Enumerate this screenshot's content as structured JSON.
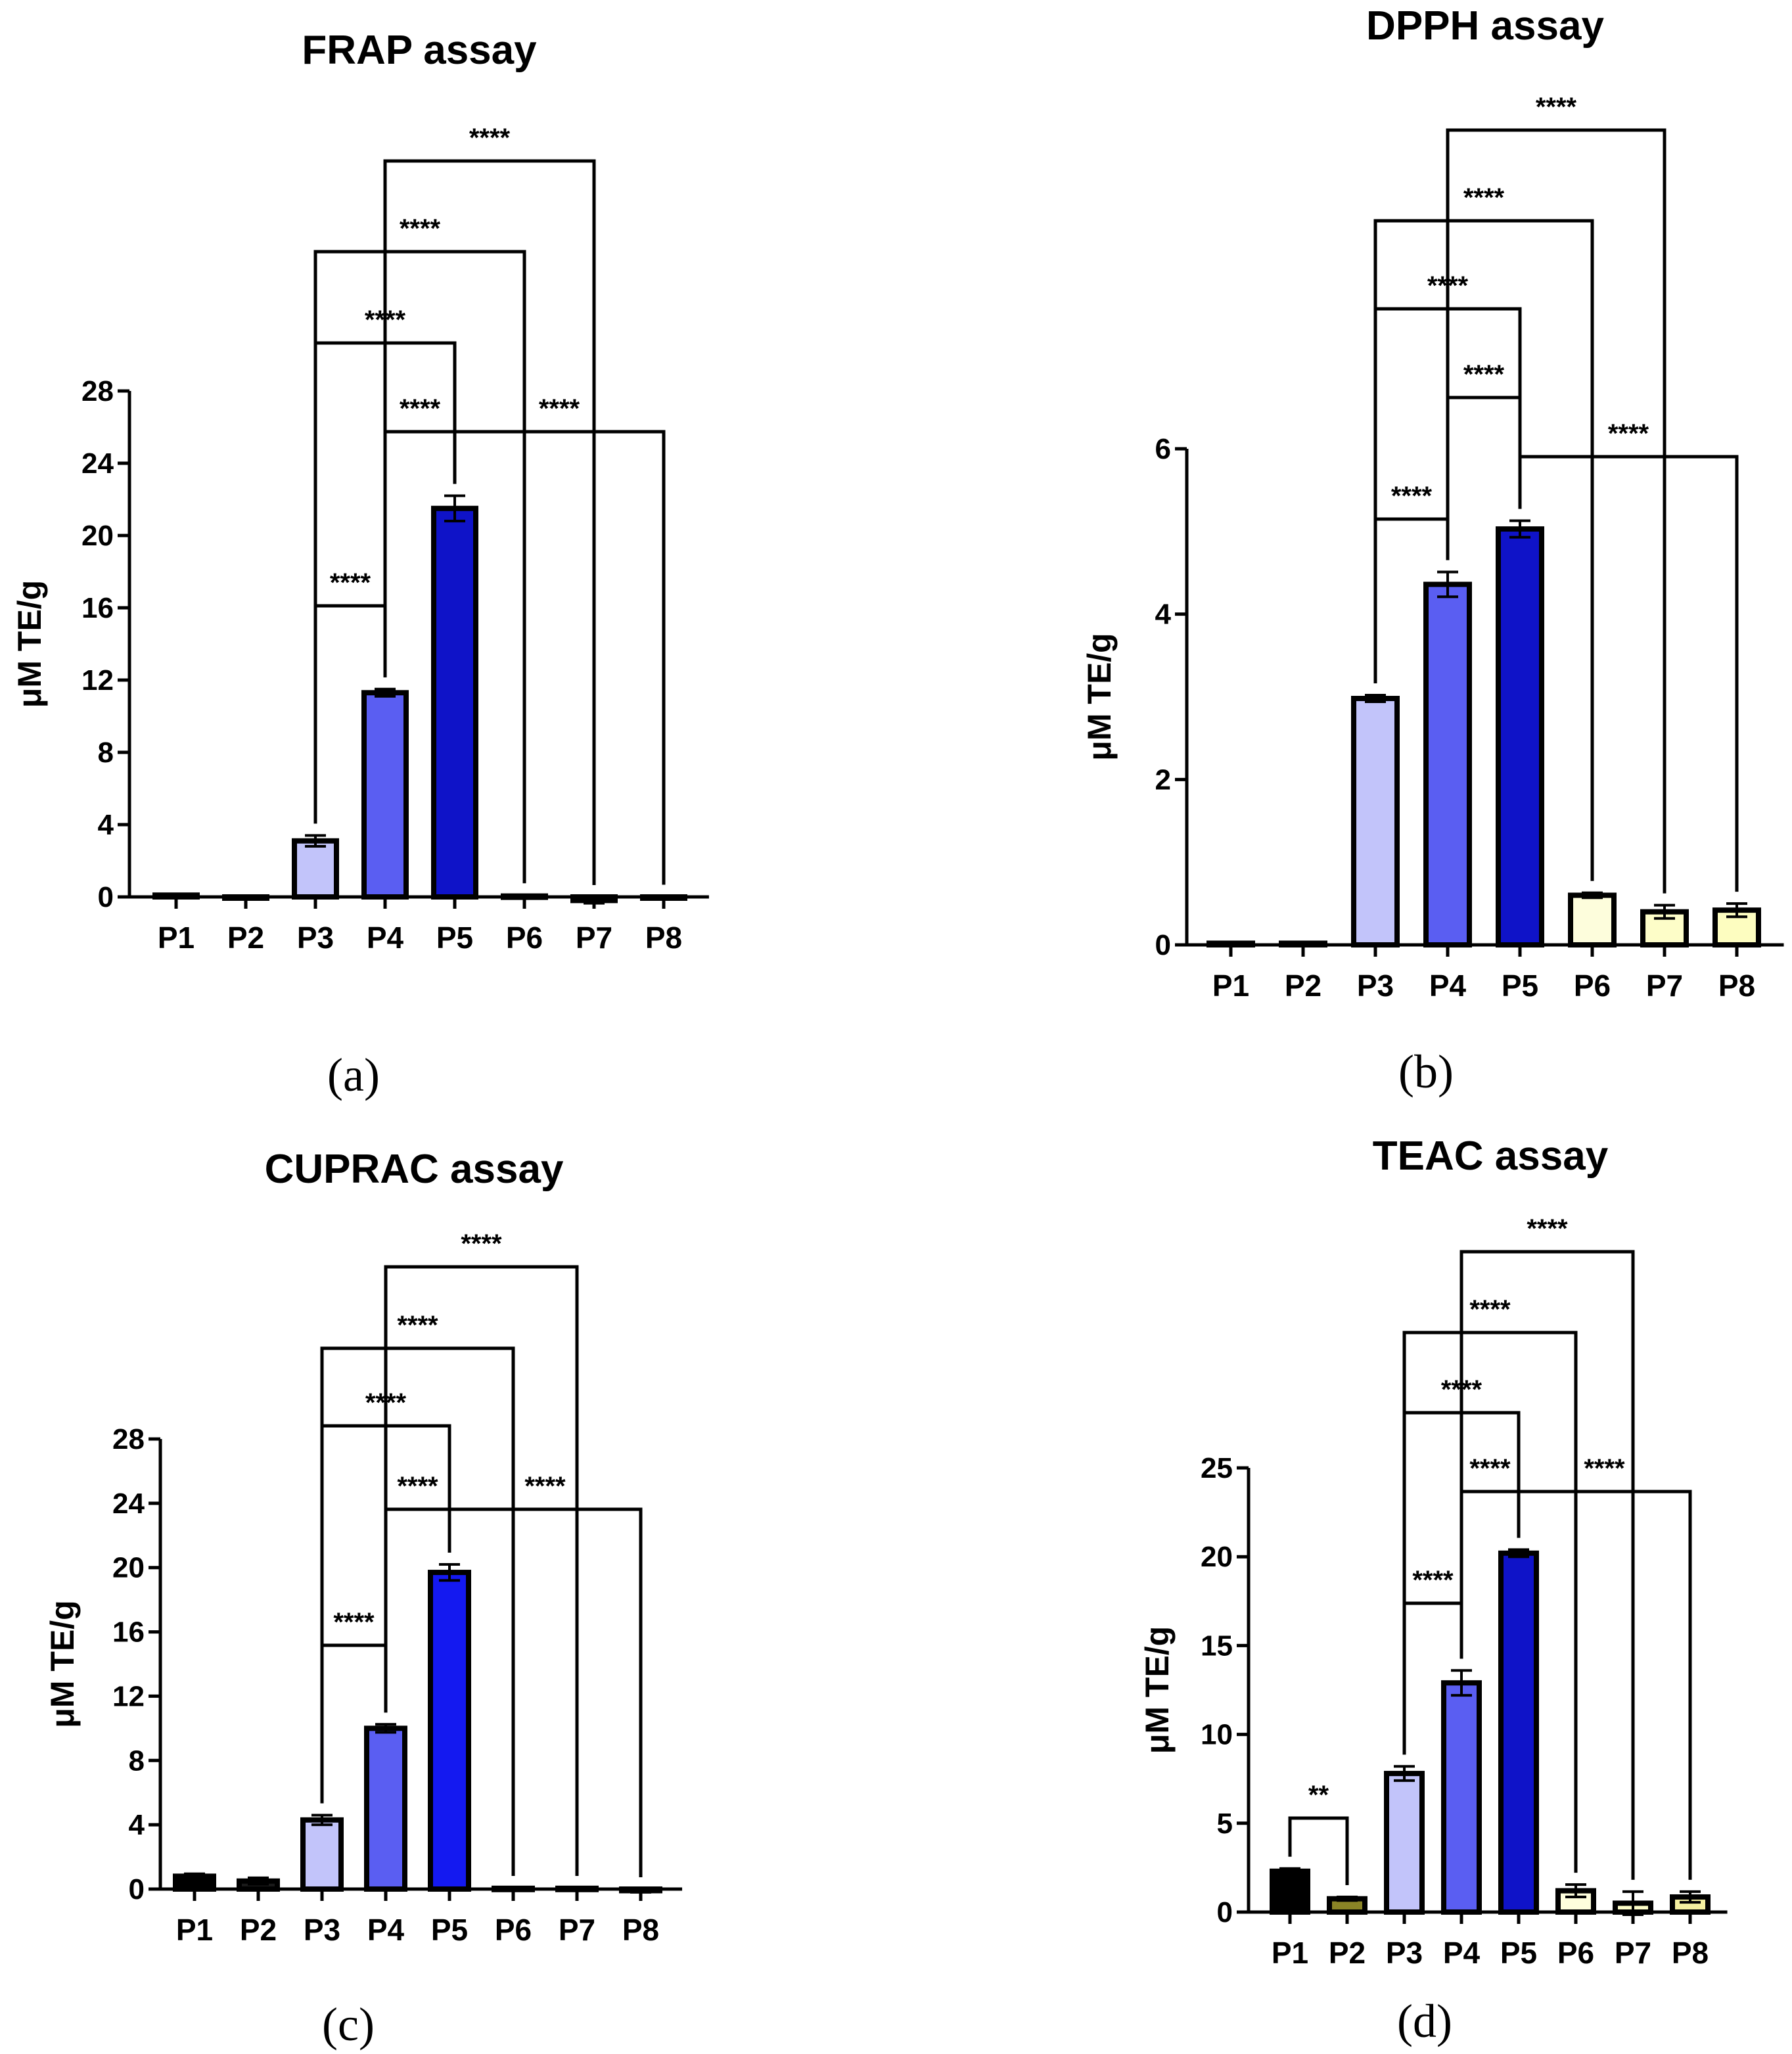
{
  "chart_data": [
    {
      "type": "bar",
      "panel_label": "(a)",
      "title": "FRAP assay",
      "ylabel": "μM TE/g",
      "xlabel": "",
      "categories": [
        "P1",
        "P2",
        "P3",
        "P4",
        "P5",
        "P6",
        "P7",
        "P8"
      ],
      "values": [
        0.1,
        0.0,
        3.1,
        11.3,
        21.5,
        0.05,
        -0.2,
        0.0
      ],
      "errors": [
        0.05,
        0.03,
        0.3,
        0.2,
        0.7,
        0.05,
        0.15,
        0.02
      ],
      "colors": [
        "#000000",
        "#1a1a1a",
        "#c2c4fa",
        "#5a5ef2",
        "#0f13c8",
        "#fdfddc",
        "#fdfdc8",
        "#fdfdc0"
      ],
      "ylim": [
        0,
        28
      ],
      "yticks": [
        "0",
        "4",
        "8",
        "12",
        "16",
        "20",
        "24",
        "28"
      ],
      "significance": [
        {
          "from": "P3",
          "to": "P4",
          "label": "****"
        },
        {
          "from": "P4",
          "to": "P5",
          "label": "****"
        },
        {
          "from": "P5",
          "to": "P8",
          "label": "****"
        },
        {
          "from": "P3",
          "to": "P5",
          "label": "****"
        },
        {
          "from": "P3",
          "to": "P6",
          "label": "****"
        },
        {
          "from": "P4",
          "to": "P7",
          "label": "****"
        }
      ]
    },
    {
      "type": "bar",
      "panel_label": "(b)",
      "title": "DPPH assay",
      "ylabel": "μM TE/g",
      "xlabel": "",
      "categories": [
        "P1",
        "P2",
        "P3",
        "P4",
        "P5",
        "P6",
        "P7",
        "P8"
      ],
      "values": [
        0.02,
        0.02,
        2.98,
        4.36,
        5.03,
        0.6,
        0.4,
        0.42
      ],
      "errors": [
        0.01,
        0.01,
        0.04,
        0.15,
        0.1,
        0.03,
        0.08,
        0.08
      ],
      "colors": [
        "#000000",
        "#1a1a1a",
        "#c2c4fa",
        "#5a5ef2",
        "#0f13c8",
        "#fdfddc",
        "#fdfdc8",
        "#fdfdc0"
      ],
      "ylim": [
        0,
        6
      ],
      "yticks": [
        "0",
        "2",
        "4",
        "6"
      ],
      "significance": [
        {
          "from": "P3",
          "to": "P4",
          "label": "****"
        },
        {
          "from": "P5",
          "to": "P8",
          "label": "****"
        },
        {
          "from": "P4",
          "to": "P5",
          "label": "****"
        },
        {
          "from": "P3",
          "to": "P5",
          "label": "****"
        },
        {
          "from": "P3",
          "to": "P6",
          "label": "****"
        },
        {
          "from": "P4",
          "to": "P7",
          "label": "****"
        }
      ]
    },
    {
      "type": "bar",
      "panel_label": "(c)",
      "title": "CUPRAC assay",
      "ylabel": "μM TE/g",
      "xlabel": "",
      "categories": [
        "P1",
        "P2",
        "P3",
        "P4",
        "P5",
        "P6",
        "P7",
        "P8"
      ],
      "values": [
        0.8,
        0.5,
        4.3,
        10.0,
        19.7,
        0.05,
        0.05,
        -0.1
      ],
      "errors": [
        0.15,
        0.2,
        0.3,
        0.25,
        0.5,
        0.03,
        0.03,
        0.1
      ],
      "colors": [
        "#000000",
        "#1a1a1a",
        "#c2c4fa",
        "#5a5ef2",
        "#1419f0",
        "#fdfddc",
        "#fdfdc8",
        "#fdfdc0"
      ],
      "ylim": [
        0,
        28
      ],
      "yticks": [
        "0",
        "4",
        "8",
        "12",
        "16",
        "20",
        "24",
        "28"
      ],
      "significance": [
        {
          "from": "P3",
          "to": "P4",
          "label": "****"
        },
        {
          "from": "P4",
          "to": "P5",
          "label": "****"
        },
        {
          "from": "P5",
          "to": "P8",
          "label": "****"
        },
        {
          "from": "P3",
          "to": "P5",
          "label": "****"
        },
        {
          "from": "P3",
          "to": "P6",
          "label": "****"
        },
        {
          "from": "P4",
          "to": "P7",
          "label": "****"
        }
      ]
    },
    {
      "type": "bar",
      "panel_label": "(d)",
      "title": "TEAC assay",
      "ylabel": "μM TE/g",
      "xlabel": "",
      "categories": [
        "P1",
        "P2",
        "P3",
        "P4",
        "P5",
        "P6",
        "P7",
        "P8"
      ],
      "values": [
        2.3,
        0.75,
        7.8,
        12.9,
        20.2,
        1.2,
        0.5,
        0.85
      ],
      "errors": [
        0.15,
        0.1,
        0.4,
        0.7,
        0.2,
        0.35,
        0.65,
        0.3
      ],
      "colors": [
        "#000000",
        "#8a8426",
        "#c2c4fa",
        "#5a5ef2",
        "#0f13c8",
        "#fdfddc",
        "#fdfdc8",
        "#f5f0a0"
      ],
      "ylim": [
        0,
        25
      ],
      "yticks": [
        "0",
        "5",
        "10",
        "15",
        "20",
        "25"
      ],
      "significance": [
        {
          "from": "P1",
          "to": "P2",
          "label": "**"
        },
        {
          "from": "P3",
          "to": "P4",
          "label": "****"
        },
        {
          "from": "P4",
          "to": "P5",
          "label": "****"
        },
        {
          "from": "P5",
          "to": "P8",
          "label": "****"
        },
        {
          "from": "P3",
          "to": "P5",
          "label": "****"
        },
        {
          "from": "P3",
          "to": "P6",
          "label": "****"
        },
        {
          "from": "P4",
          "to": "P7",
          "label": "****"
        }
      ]
    }
  ]
}
